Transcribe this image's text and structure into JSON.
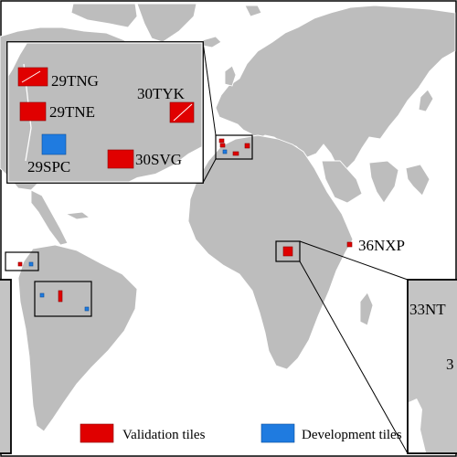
{
  "labels": {
    "spain_inset": [
      "29TNG",
      "29TNE",
      "30TYK",
      "29SPC",
      "30SVG"
    ],
    "nxp": "36NXP",
    "africa_inset": "33NT",
    "africa_inset_partial": "3"
  },
  "legend": {
    "validation_label": "Validation tiles",
    "development_label": "Development tiles"
  },
  "colors": {
    "validation": "#e00000",
    "development": "#1f7be0",
    "land": "#bdbdbd",
    "ocean": "#ffffff"
  }
}
